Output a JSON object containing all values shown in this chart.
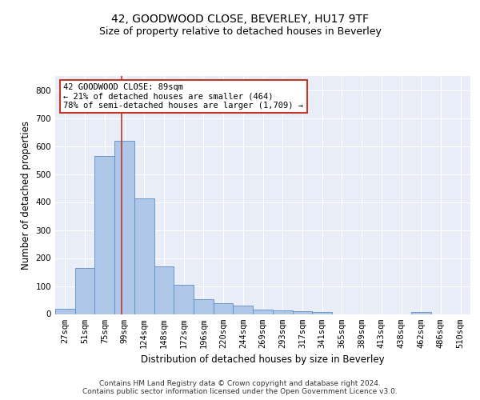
{
  "title": "42, GOODWOOD CLOSE, BEVERLEY, HU17 9TF",
  "subtitle": "Size of property relative to detached houses in Beverley",
  "xlabel": "Distribution of detached houses by size in Beverley",
  "ylabel": "Number of detached properties",
  "bar_values": [
    20,
    165,
    565,
    620,
    413,
    170,
    103,
    52,
    40,
    30,
    15,
    12,
    10,
    8,
    0,
    0,
    0,
    0,
    8,
    0,
    0
  ],
  "categories": [
    "27sqm",
    "51sqm",
    "75sqm",
    "99sqm",
    "124sqm",
    "148sqm",
    "172sqm",
    "196sqm",
    "220sqm",
    "244sqm",
    "269sqm",
    "293sqm",
    "317sqm",
    "341sqm",
    "365sqm",
    "389sqm",
    "413sqm",
    "438sqm",
    "462sqm",
    "486sqm",
    "510sqm"
  ],
  "bar_color": "#aec6e8",
  "bar_edge_color": "#5b8ec4",
  "background_color": "#e8edf8",
  "grid_color": "#ffffff",
  "vline_color": "#c0392b",
  "vline_pos": 2.85,
  "annotation_text": "42 GOODWOOD CLOSE: 89sqm\n← 21% of detached houses are smaller (464)\n78% of semi-detached houses are larger (1,709) →",
  "annotation_box_color": "#ffffff",
  "annotation_box_edge_color": "#c0392b",
  "ylim": [
    0,
    850
  ],
  "yticks": [
    0,
    100,
    200,
    300,
    400,
    500,
    600,
    700,
    800
  ],
  "footer_text": "Contains HM Land Registry data © Crown copyright and database right 2024.\nContains public sector information licensed under the Open Government Licence v3.0.",
  "title_fontsize": 10,
  "subtitle_fontsize": 9,
  "axis_label_fontsize": 8.5,
  "tick_fontsize": 7.5,
  "annotation_fontsize": 7.5,
  "footer_fontsize": 6.5
}
